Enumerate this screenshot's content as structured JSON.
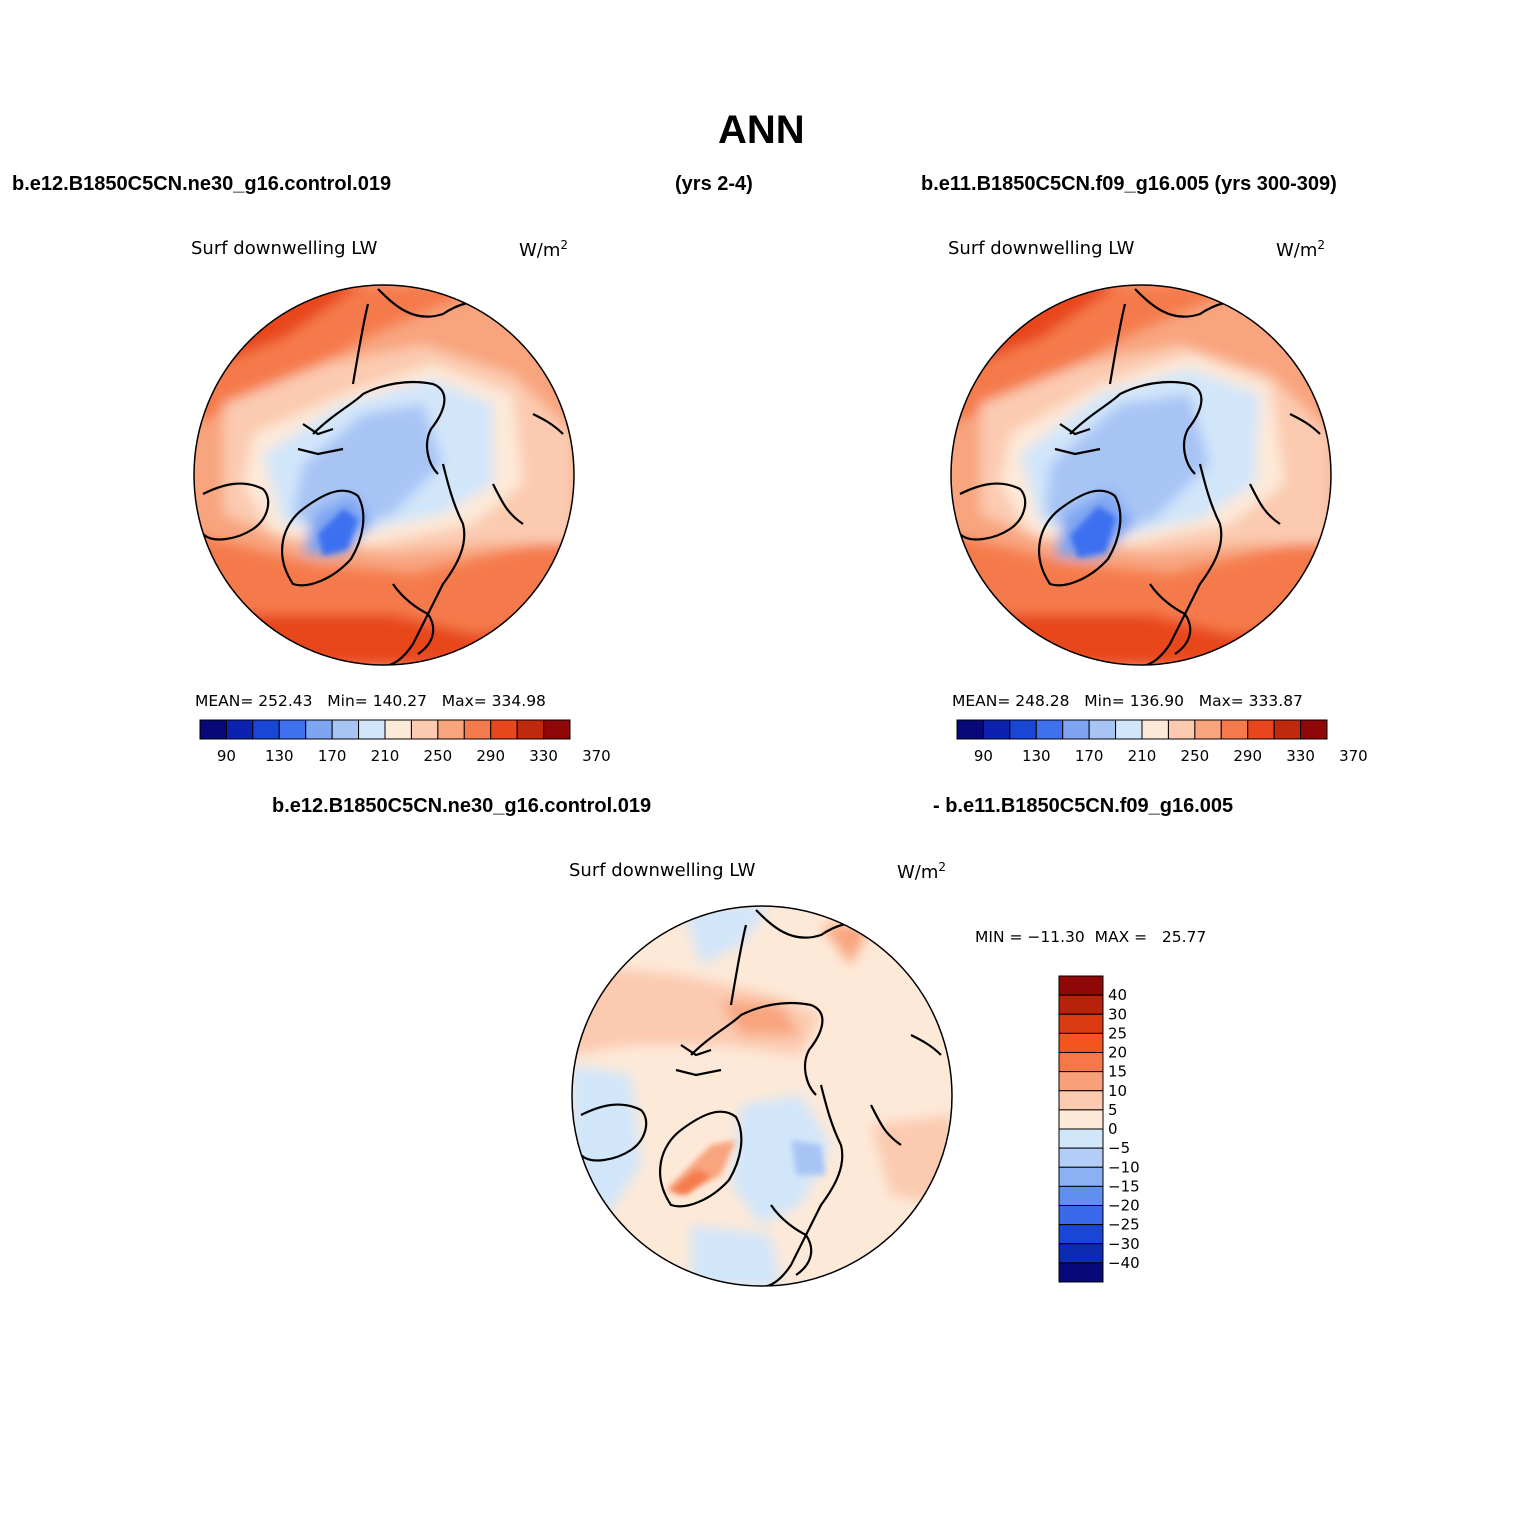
{
  "figure": {
    "title": "ANN",
    "top_left_case": "b.e12.B1850C5CN.ne30_g16.control.019",
    "top_left_years": "(yrs 2-4)",
    "top_right_case": "b.e11.B1850C5CN.f09_g16.005 (yrs 300-309)",
    "diff_case_a": "b.e12.B1850C5CN.ne30_g16.control.019",
    "diff_case_b": "- b.e11.B1850C5CN.f09_g16.005"
  },
  "panels": [
    {
      "variable": "Surf downwelling LW",
      "units_base": "W/m",
      "units_exp": "2",
      "stats": "MEAN= 252.43   Min= 140.27   Max= 334.98"
    },
    {
      "variable": "Surf downwelling LW",
      "units_base": "W/m",
      "units_exp": "2",
      "stats": "MEAN= 248.28   Min= 136.90   Max= 333.87"
    },
    {
      "variable": "Surf downwelling LW",
      "units_base": "W/m",
      "units_exp": "2",
      "stats": "MIN = −11.30  MAX =   25.77"
    }
  ],
  "colorbar_h": {
    "colors": [
      "#08087a",
      "#0b22b0",
      "#1a46d6",
      "#3e70f0",
      "#7ea4f2",
      "#a8c4f5",
      "#d2e6fa",
      "#fde9d8",
      "#fbcab0",
      "#f8a47e",
      "#f57a4c",
      "#e8461c",
      "#c02a0c",
      "#900707"
    ],
    "labels": [
      "90",
      "130",
      "170",
      "210",
      "250",
      "290",
      "330",
      "370"
    ]
  },
  "colorbar_v": {
    "colors": [
      "#900707",
      "#b8210a",
      "#db3b12",
      "#f4541e",
      "#f6784a",
      "#f8a07a",
      "#fbcab0",
      "#fde9d8",
      "#d2e6fa",
      "#b2cdf7",
      "#8cb1f3",
      "#5f8ff0",
      "#3a69ec",
      "#1a46d6",
      "#0b2cb2",
      "#08087a"
    ],
    "labels": [
      "40",
      "30",
      "25",
      "20",
      "15",
      "10",
      "5",
      "0",
      "−5",
      "−10",
      "−15",
      "−20",
      "−25",
      "−30",
      "−40"
    ]
  },
  "chart_data": [
    {
      "type": "heatmap",
      "title": "Surf downwelling LW",
      "units": "W/m2",
      "projection": "north polar stereographic",
      "case": "b.e12.B1850C5CN.ne30_g16.control.019 (yrs 2-4)",
      "mean": 252.43,
      "min": 140.27,
      "max": 334.98,
      "contour_levels": [
        90,
        110,
        130,
        150,
        170,
        190,
        210,
        230,
        250,
        270,
        290,
        310,
        330,
        350,
        370
      ]
    },
    {
      "type": "heatmap",
      "title": "Surf downwelling LW",
      "units": "W/m2",
      "projection": "north polar stereographic",
      "case": "b.e11.B1850C5CN.f09_g16.005 (yrs 300-309)",
      "mean": 248.28,
      "min": 136.9,
      "max": 333.87,
      "contour_levels": [
        90,
        110,
        130,
        150,
        170,
        190,
        210,
        230,
        250,
        270,
        290,
        310,
        330,
        350,
        370
      ]
    },
    {
      "type": "heatmap",
      "title": "Surf downwelling LW",
      "units": "W/m2",
      "projection": "north polar stereographic",
      "case": "difference",
      "min": -11.3,
      "max": 25.77,
      "contour_levels": [
        -40,
        -30,
        -25,
        -20,
        -15,
        -10,
        -5,
        0,
        5,
        10,
        15,
        20,
        25,
        30,
        40
      ]
    }
  ]
}
